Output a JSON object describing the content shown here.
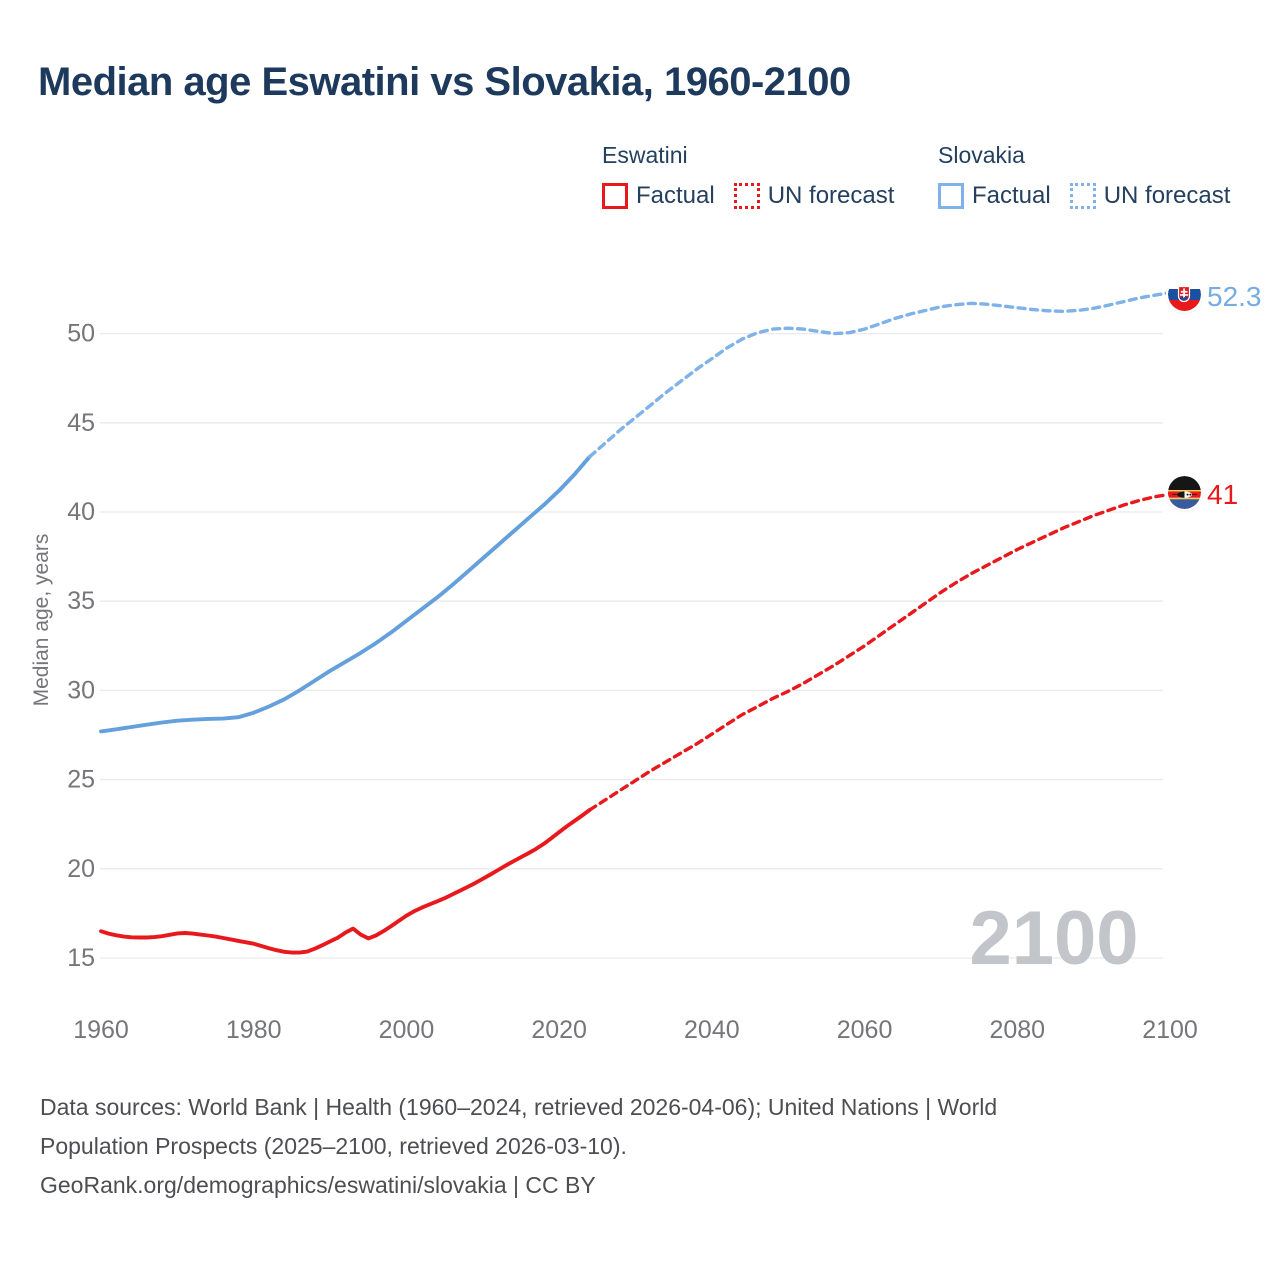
{
  "title": "Median age Eswatini vs Slovakia, 1960-2100",
  "colors": {
    "eswatini": "#e8191d",
    "slovakia_factual": "#64a0dc",
    "slovakia_forecast": "#7fb2e8",
    "title_text": "#1d3a5c",
    "axis_text": "#75767a",
    "gridline": "#eaeaec",
    "watermark": "#c2c5c9",
    "footer_text": "#4d4e52"
  },
  "legend": {
    "groups": [
      {
        "name": "Eswatini",
        "items": [
          {
            "label": "Factual",
            "style": "solid"
          },
          {
            "label": "UN forecast",
            "style": "dotted"
          }
        ]
      },
      {
        "name": "Slovakia",
        "items": [
          {
            "label": "Factual",
            "style": "solid"
          },
          {
            "label": "UN forecast",
            "style": "dotted"
          }
        ]
      }
    ]
  },
  "watermark": "2100",
  "end_labels": [
    {
      "series": "Slovakia",
      "flag": "slovakia-flag-icon",
      "value": "52.3",
      "color": "#76abe4"
    },
    {
      "series": "Eswatini",
      "flag": "eswatini-flag-icon",
      "value": "41",
      "color": "#e8191d"
    }
  ],
  "footer": {
    "lines": [
      "Data sources: World Bank | Health (1960–2024, retrieved 2026-04-06); United Nations | World",
      "Population Prospects (2025–2100, retrieved 2026-03-10).",
      "GeoRank.org/demographics/eswatini/slovakia | CC BY"
    ]
  },
  "chart_data": {
    "type": "line",
    "title": "Median age Eswatini vs Slovakia, 1960-2100",
    "xlabel": "",
    "ylabel": "Median age, years",
    "xlim": [
      1960,
      2100
    ],
    "ylim": [
      15,
      52.5
    ],
    "xticks": [
      1960,
      1980,
      2000,
      2020,
      2040,
      2060,
      2080,
      2100
    ],
    "yticks": [
      15,
      20,
      25,
      30,
      35,
      40,
      45,
      50
    ],
    "grid": "horizontal",
    "legend_position": "top",
    "series": [
      {
        "name": "Eswatini factual",
        "color": "#e8191d",
        "dash": "solid",
        "points": [
          [
            1960,
            16.5
          ],
          [
            1961,
            16.37
          ],
          [
            1962,
            16.27
          ],
          [
            1963,
            16.2
          ],
          [
            1964,
            16.16
          ],
          [
            1965,
            16.15
          ],
          [
            1966,
            16.15
          ],
          [
            1967,
            16.17
          ],
          [
            1968,
            16.22
          ],
          [
            1969,
            16.3
          ],
          [
            1970,
            16.38
          ],
          [
            1971,
            16.4
          ],
          [
            1972,
            16.37
          ],
          [
            1973,
            16.31
          ],
          [
            1974,
            16.26
          ],
          [
            1975,
            16.2
          ],
          [
            1976,
            16.12
          ],
          [
            1977,
            16.04
          ],
          [
            1978,
            15.96
          ],
          [
            1979,
            15.88
          ],
          [
            1980,
            15.8
          ],
          [
            1981,
            15.67
          ],
          [
            1982,
            15.55
          ],
          [
            1983,
            15.44
          ],
          [
            1984,
            15.35
          ],
          [
            1985,
            15.3
          ],
          [
            1986,
            15.3
          ],
          [
            1987,
            15.36
          ],
          [
            1988,
            15.52
          ],
          [
            1989,
            15.72
          ],
          [
            1990,
            15.93
          ],
          [
            1991,
            16.14
          ],
          [
            1992,
            16.42
          ],
          [
            1993,
            16.65
          ],
          [
            1994,
            16.32
          ],
          [
            1995,
            16.1
          ],
          [
            1996,
            16.26
          ],
          [
            1997,
            16.51
          ],
          [
            1998,
            16.79
          ],
          [
            1999,
            17.08
          ],
          [
            2000,
            17.37
          ],
          [
            2001,
            17.62
          ],
          [
            2002,
            17.82
          ],
          [
            2003,
            18.0
          ],
          [
            2004,
            18.17
          ],
          [
            2005,
            18.35
          ],
          [
            2006,
            18.56
          ],
          [
            2007,
            18.77
          ],
          [
            2008,
            18.98
          ],
          [
            2009,
            19.2
          ],
          [
            2010,
            19.44
          ],
          [
            2011,
            19.68
          ],
          [
            2012,
            19.93
          ],
          [
            2013,
            20.18
          ],
          [
            2014,
            20.42
          ],
          [
            2015,
            20.65
          ],
          [
            2016,
            20.88
          ],
          [
            2017,
            21.12
          ],
          [
            2018,
            21.4
          ],
          [
            2019,
            21.72
          ],
          [
            2020,
            22.05
          ],
          [
            2021,
            22.38
          ],
          [
            2022,
            22.68
          ],
          [
            2023,
            22.98
          ],
          [
            2024,
            23.3
          ]
        ]
      },
      {
        "name": "Eswatini UN forecast",
        "color": "#e8191d",
        "dash": "dashed",
        "points": [
          [
            2024,
            23.3
          ],
          [
            2026,
            23.85
          ],
          [
            2028,
            24.4
          ],
          [
            2030,
            24.95
          ],
          [
            2032,
            25.5
          ],
          [
            2034,
            26.0
          ],
          [
            2036,
            26.5
          ],
          [
            2038,
            27.0
          ],
          [
            2040,
            27.55
          ],
          [
            2042,
            28.1
          ],
          [
            2044,
            28.65
          ],
          [
            2046,
            29.1
          ],
          [
            2048,
            29.55
          ],
          [
            2050,
            29.95
          ],
          [
            2052,
            30.4
          ],
          [
            2054,
            30.9
          ],
          [
            2056,
            31.4
          ],
          [
            2058,
            31.95
          ],
          [
            2060,
            32.5
          ],
          [
            2062,
            33.1
          ],
          [
            2064,
            33.7
          ],
          [
            2066,
            34.3
          ],
          [
            2068,
            34.9
          ],
          [
            2070,
            35.5
          ],
          [
            2072,
            36.05
          ],
          [
            2074,
            36.55
          ],
          [
            2076,
            37.0
          ],
          [
            2078,
            37.45
          ],
          [
            2080,
            37.9
          ],
          [
            2082,
            38.3
          ],
          [
            2084,
            38.7
          ],
          [
            2086,
            39.1
          ],
          [
            2088,
            39.45
          ],
          [
            2090,
            39.8
          ],
          [
            2092,
            40.1
          ],
          [
            2094,
            40.4
          ],
          [
            2096,
            40.65
          ],
          [
            2098,
            40.85
          ],
          [
            2100,
            41.0
          ]
        ]
      },
      {
        "name": "Slovakia factual",
        "color": "#64a0dc",
        "dash": "solid",
        "points": [
          [
            1960,
            27.7
          ],
          [
            1962,
            27.82
          ],
          [
            1964,
            27.95
          ],
          [
            1966,
            28.08
          ],
          [
            1968,
            28.2
          ],
          [
            1970,
            28.3
          ],
          [
            1972,
            28.36
          ],
          [
            1974,
            28.4
          ],
          [
            1976,
            28.42
          ],
          [
            1978,
            28.5
          ],
          [
            1980,
            28.75
          ],
          [
            1982,
            29.1
          ],
          [
            1984,
            29.5
          ],
          [
            1986,
            30.0
          ],
          [
            1988,
            30.55
          ],
          [
            1990,
            31.1
          ],
          [
            1992,
            31.6
          ],
          [
            1994,
            32.1
          ],
          [
            1996,
            32.65
          ],
          [
            1998,
            33.25
          ],
          [
            2000,
            33.9
          ],
          [
            2002,
            34.55
          ],
          [
            2004,
            35.2
          ],
          [
            2006,
            35.9
          ],
          [
            2008,
            36.65
          ],
          [
            2010,
            37.4
          ],
          [
            2012,
            38.15
          ],
          [
            2014,
            38.9
          ],
          [
            2016,
            39.65
          ],
          [
            2018,
            40.4
          ],
          [
            2020,
            41.2
          ],
          [
            2022,
            42.1
          ],
          [
            2024,
            43.1
          ]
        ]
      },
      {
        "name": "Slovakia UN forecast",
        "color": "#7fb2e8",
        "dash": "dashed",
        "points": [
          [
            2024,
            43.1
          ],
          [
            2026,
            43.85
          ],
          [
            2028,
            44.6
          ],
          [
            2030,
            45.3
          ],
          [
            2032,
            46.0
          ],
          [
            2034,
            46.7
          ],
          [
            2036,
            47.35
          ],
          [
            2038,
            48.0
          ],
          [
            2040,
            48.6
          ],
          [
            2042,
            49.2
          ],
          [
            2044,
            49.7
          ],
          [
            2046,
            50.05
          ],
          [
            2048,
            50.25
          ],
          [
            2050,
            50.3
          ],
          [
            2052,
            50.25
          ],
          [
            2054,
            50.12
          ],
          [
            2056,
            50.0
          ],
          [
            2058,
            50.05
          ],
          [
            2060,
            50.25
          ],
          [
            2062,
            50.55
          ],
          [
            2064,
            50.85
          ],
          [
            2066,
            51.1
          ],
          [
            2068,
            51.3
          ],
          [
            2070,
            51.5
          ],
          [
            2072,
            51.62
          ],
          [
            2074,
            51.7
          ],
          [
            2076,
            51.65
          ],
          [
            2078,
            51.55
          ],
          [
            2080,
            51.45
          ],
          [
            2082,
            51.35
          ],
          [
            2084,
            51.28
          ],
          [
            2086,
            51.25
          ],
          [
            2088,
            51.3
          ],
          [
            2090,
            51.42
          ],
          [
            2092,
            51.6
          ],
          [
            2094,
            51.8
          ],
          [
            2096,
            52.0
          ],
          [
            2098,
            52.15
          ],
          [
            2100,
            52.3
          ]
        ]
      }
    ],
    "end_annotations": [
      {
        "series": "Slovakia",
        "year": 2100,
        "value": 52.3
      },
      {
        "series": "Eswatini",
        "year": 2100,
        "value": 41
      }
    ]
  }
}
